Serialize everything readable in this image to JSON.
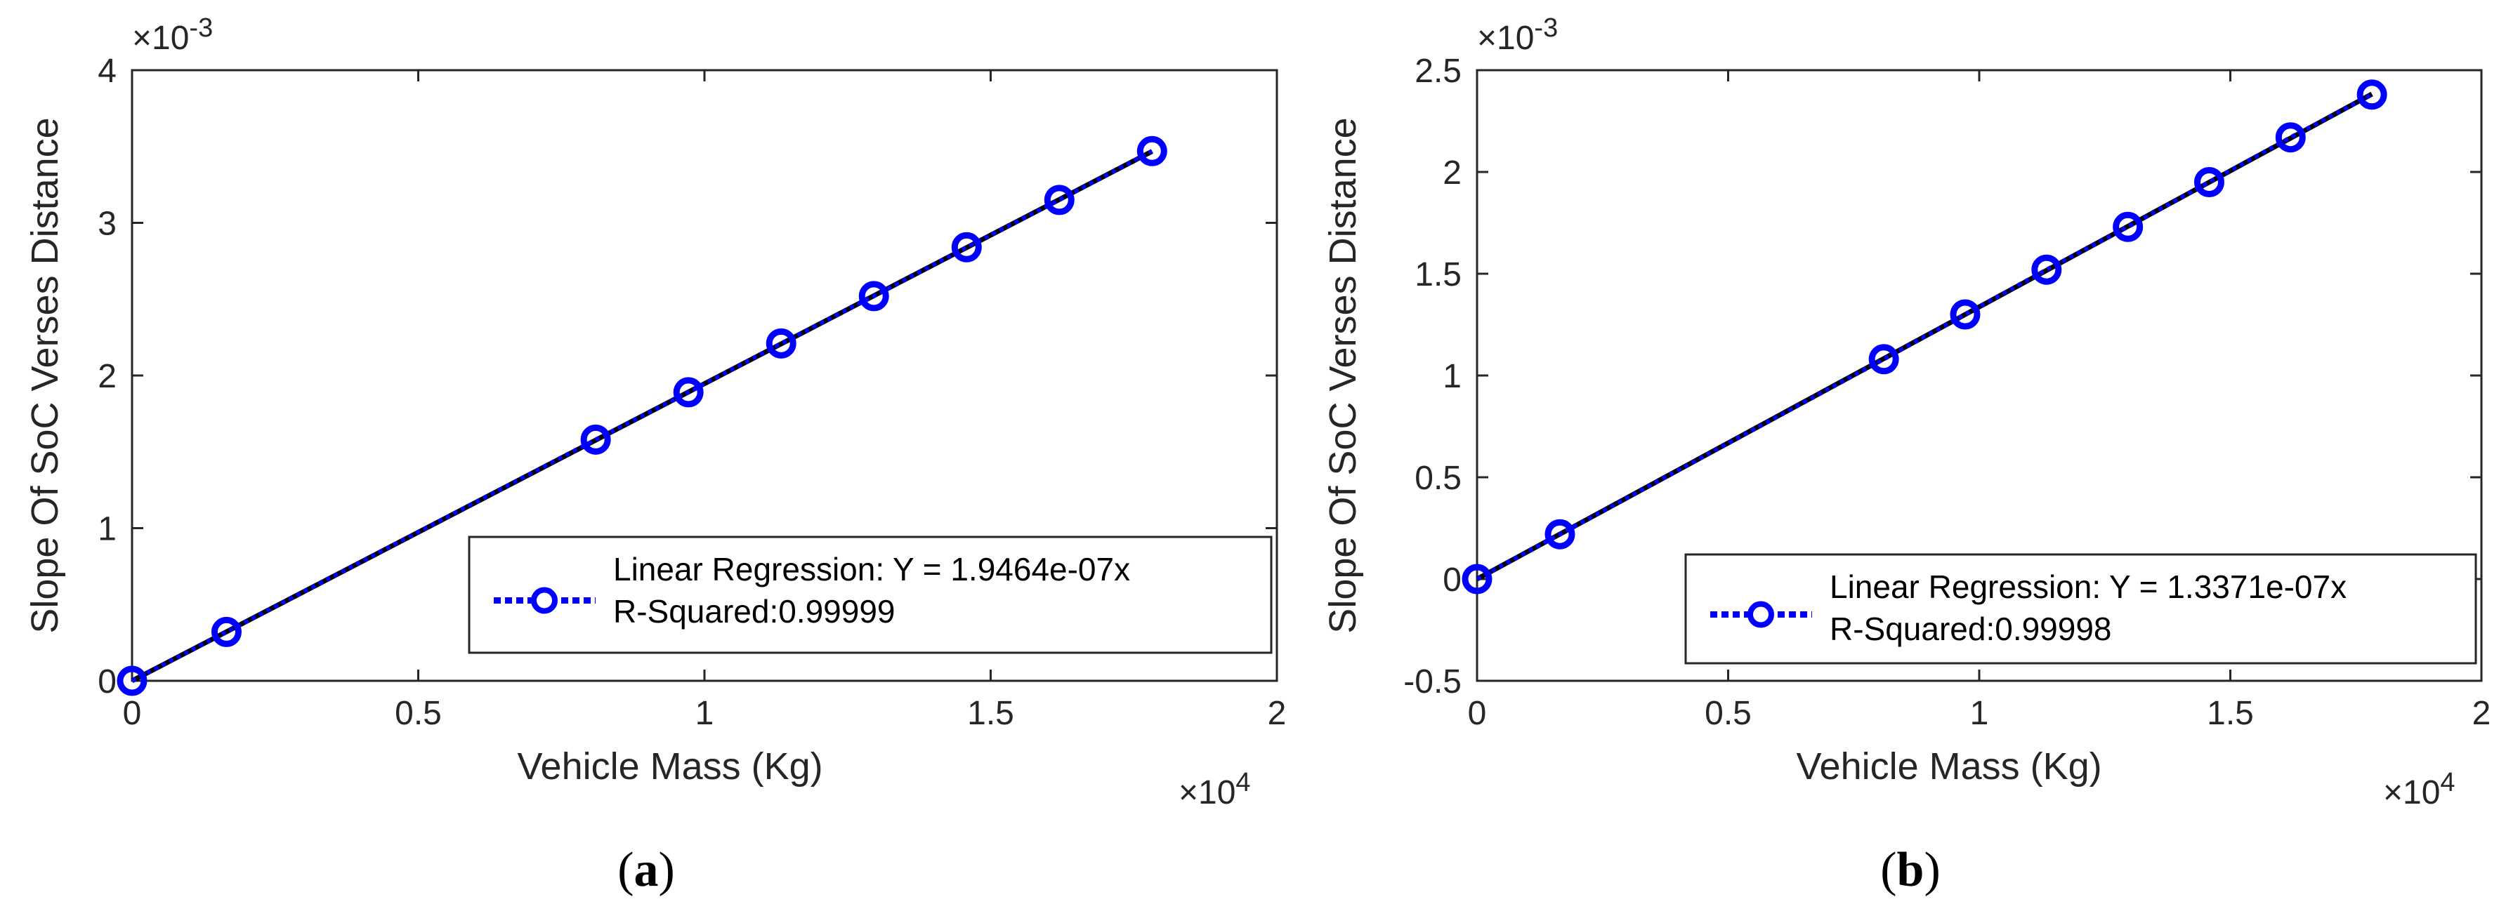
{
  "chart_data": [
    {
      "type": "line",
      "panel_label": "a",
      "title": "",
      "xlabel": "Vehicle Mass (Kg)",
      "ylabel": "Slope Of SoC Verses Distance",
      "x_multiplier": "×10",
      "x_multiplier_exp": "4",
      "y_multiplier": "×10",
      "y_multiplier_exp": "-3",
      "xlim": [
        0,
        2
      ],
      "ylim": [
        0,
        4
      ],
      "xticks": [
        "0",
        "0.5",
        "1",
        "1.5",
        "2"
      ],
      "yticks": [
        "0",
        "1",
        "2",
        "3",
        "4"
      ],
      "xtick_values": [
        0,
        0.5,
        1,
        1.5,
        2
      ],
      "ytick_values": [
        0,
        1,
        2,
        3,
        4
      ],
      "x": [
        0,
        0.165,
        0.81,
        0.972,
        1.134,
        1.296,
        1.458,
        1.62,
        1.782
      ],
      "series": [
        {
          "name": "Linear Regression: Y = 1.9464e-07x",
          "values": [
            0,
            0.32,
            1.58,
            1.89,
            2.21,
            2.52,
            2.84,
            3.15,
            3.47
          ],
          "color": "#0000ff",
          "style": "dotted with circle markers"
        }
      ],
      "fit_line": {
        "slope": 1.9464,
        "color": "#000000"
      },
      "legend": {
        "position": "bottom-right",
        "line1": "Linear Regression: Y = 1.9464e-07x",
        "line2": "R-Squared:0.99999"
      }
    },
    {
      "type": "line",
      "panel_label": "b",
      "title": "",
      "xlabel": "Vehicle Mass (Kg)",
      "ylabel": "Slope Of SoC Verses Distance",
      "x_multiplier": "×10",
      "x_multiplier_exp": "4",
      "y_multiplier": "×10",
      "y_multiplier_exp": "-3",
      "xlim": [
        0,
        2
      ],
      "ylim": [
        -0.5,
        2.5
      ],
      "xticks": [
        "0",
        "0.5",
        "1",
        "1.5",
        "2"
      ],
      "yticks": [
        "-0.5",
        "0",
        "0.5",
        "1",
        "1.5",
        "2",
        "2.5"
      ],
      "xtick_values": [
        0,
        0.5,
        1,
        1.5,
        2
      ],
      "ytick_values": [
        -0.5,
        0,
        0.5,
        1,
        1.5,
        2,
        2.5
      ],
      "x": [
        0,
        0.165,
        0.81,
        0.972,
        1.134,
        1.296,
        1.458,
        1.62,
        1.782
      ],
      "series": [
        {
          "name": "Linear Regression: Y = 1.3371e-07x",
          "values": [
            0,
            0.22,
            1.08,
            1.3,
            1.52,
            1.73,
            1.95,
            2.17,
            2.38
          ],
          "color": "#0000ff",
          "style": "dotted with circle markers"
        }
      ],
      "fit_line": {
        "slope": 1.3371,
        "color": "#000000"
      },
      "legend": {
        "position": "bottom-right",
        "line1": "Linear Regression: Y = 1.3371e-07x",
        "line2": "R-Squared:0.99998"
      }
    }
  ]
}
